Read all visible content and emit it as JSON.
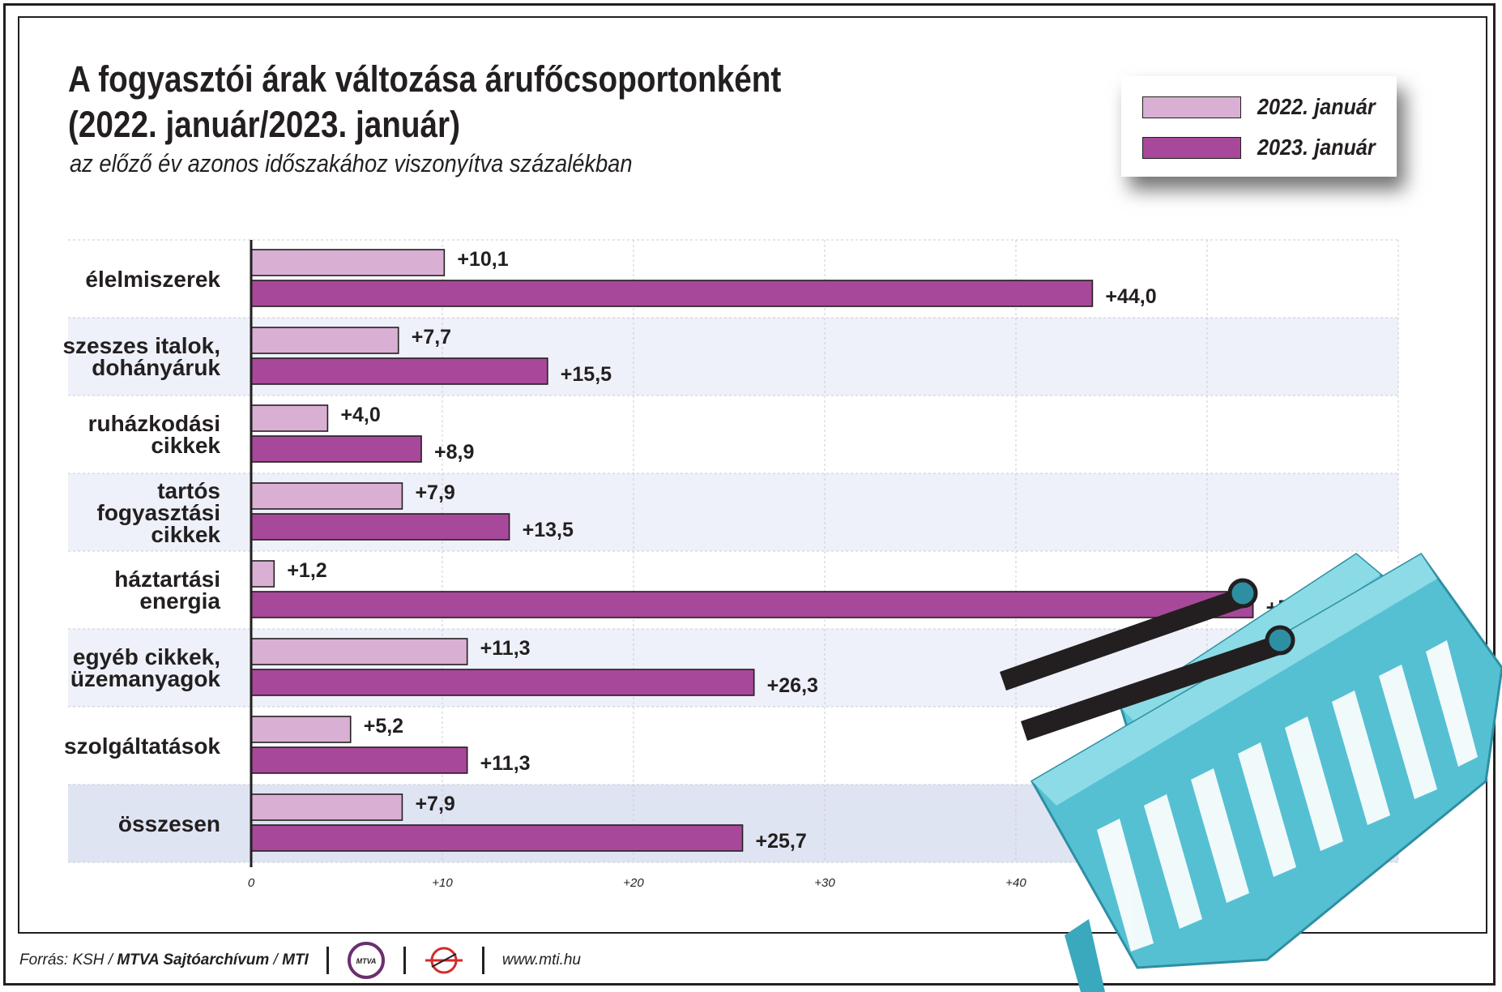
{
  "title_line1": "A fogyasztói árak változása árufőcsoportonként",
  "title_line2": "(2022. január/2023. január)",
  "subtitle": "az előző év azonos időszakához viszonyítva százalékban",
  "legend": {
    "series1": "2022. január",
    "series2": "2023. január"
  },
  "colors": {
    "series1": "#d9b0d3",
    "series2": "#a8489a",
    "band": "#eef1f9",
    "band_total": "#dfe4f3",
    "basket": "#5ec7d8"
  },
  "footer": {
    "source_prefix": "Forrás: KSH / ",
    "source_bold": "MTVA Sajtóarchívum",
    "source_sep": " / ",
    "source_mti": "MTI",
    "logo_text": "MTVA",
    "url": "www.mti.hu"
  },
  "chart_data": {
    "type": "bar",
    "orientation": "horizontal",
    "categories": [
      "élelmiszerek",
      "szeszes italok,\ndohányáruk",
      "ruházkodási\ncikkek",
      "tartós\nfogyasztási\ncikkek",
      "háztartási\nenergia",
      "egyéb cikkek,\nüzemanyagok",
      "szolgáltatások",
      "összesen"
    ],
    "series": [
      {
        "name": "2022. január",
        "values": [
          10.1,
          7.7,
          4.0,
          7.9,
          1.2,
          11.3,
          5.2,
          7.9
        ],
        "labels": [
          "+10,1",
          "+7,7",
          "+4,0",
          "+7,9",
          "+1,2",
          "+11,3",
          "+5,2",
          "+7,9"
        ]
      },
      {
        "name": "2023. január",
        "values": [
          44.0,
          15.5,
          8.9,
          13.5,
          52.4,
          26.3,
          11.3,
          25.7
        ],
        "labels": [
          "+44,0",
          "+15,5",
          "+8,9",
          "+13,5",
          "+52,4",
          "+26,3",
          "+11,3",
          "+25,7"
        ]
      }
    ],
    "xlim": [
      0,
      60
    ],
    "ticks": [
      "0",
      "+10",
      "+20",
      "+30",
      "+40",
      "+"
    ],
    "grid": true,
    "legend_position": "top-right"
  }
}
